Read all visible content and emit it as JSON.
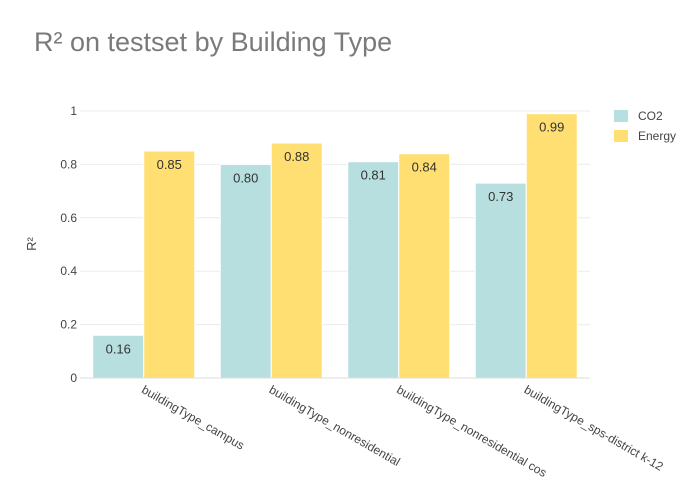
{
  "chart_data": {
    "type": "bar",
    "title": "R² on testset by Building Type",
    "ylabel": "R²",
    "xlabel": "",
    "categories": [
      "buildingType_campus",
      "buildingType_nonresidential",
      "buildingType_nonresidential cos",
      "buildingType_sps-district k-12"
    ],
    "series": [
      {
        "name": "CO2",
        "values": [
          0.16,
          0.8,
          0.81,
          0.73
        ],
        "labels": [
          "0.16",
          "0.80",
          "0.81",
          "0.73"
        ],
        "color": "#b8dfe0"
      },
      {
        "name": "Energy",
        "values": [
          0.85,
          0.88,
          0.84,
          0.99
        ],
        "labels": [
          "0.85",
          "0.88",
          "0.84",
          "0.99"
        ],
        "color": "#ffdf72"
      }
    ],
    "ylim": [
      0,
      1
    ],
    "yticks": [
      0,
      0.2,
      0.4,
      0.6,
      0.8,
      1
    ],
    "ytick_labels": [
      "0",
      "0.2",
      "0.4",
      "0.6",
      "0.8",
      "1"
    ],
    "grid": true,
    "legend_position": "top-right"
  }
}
